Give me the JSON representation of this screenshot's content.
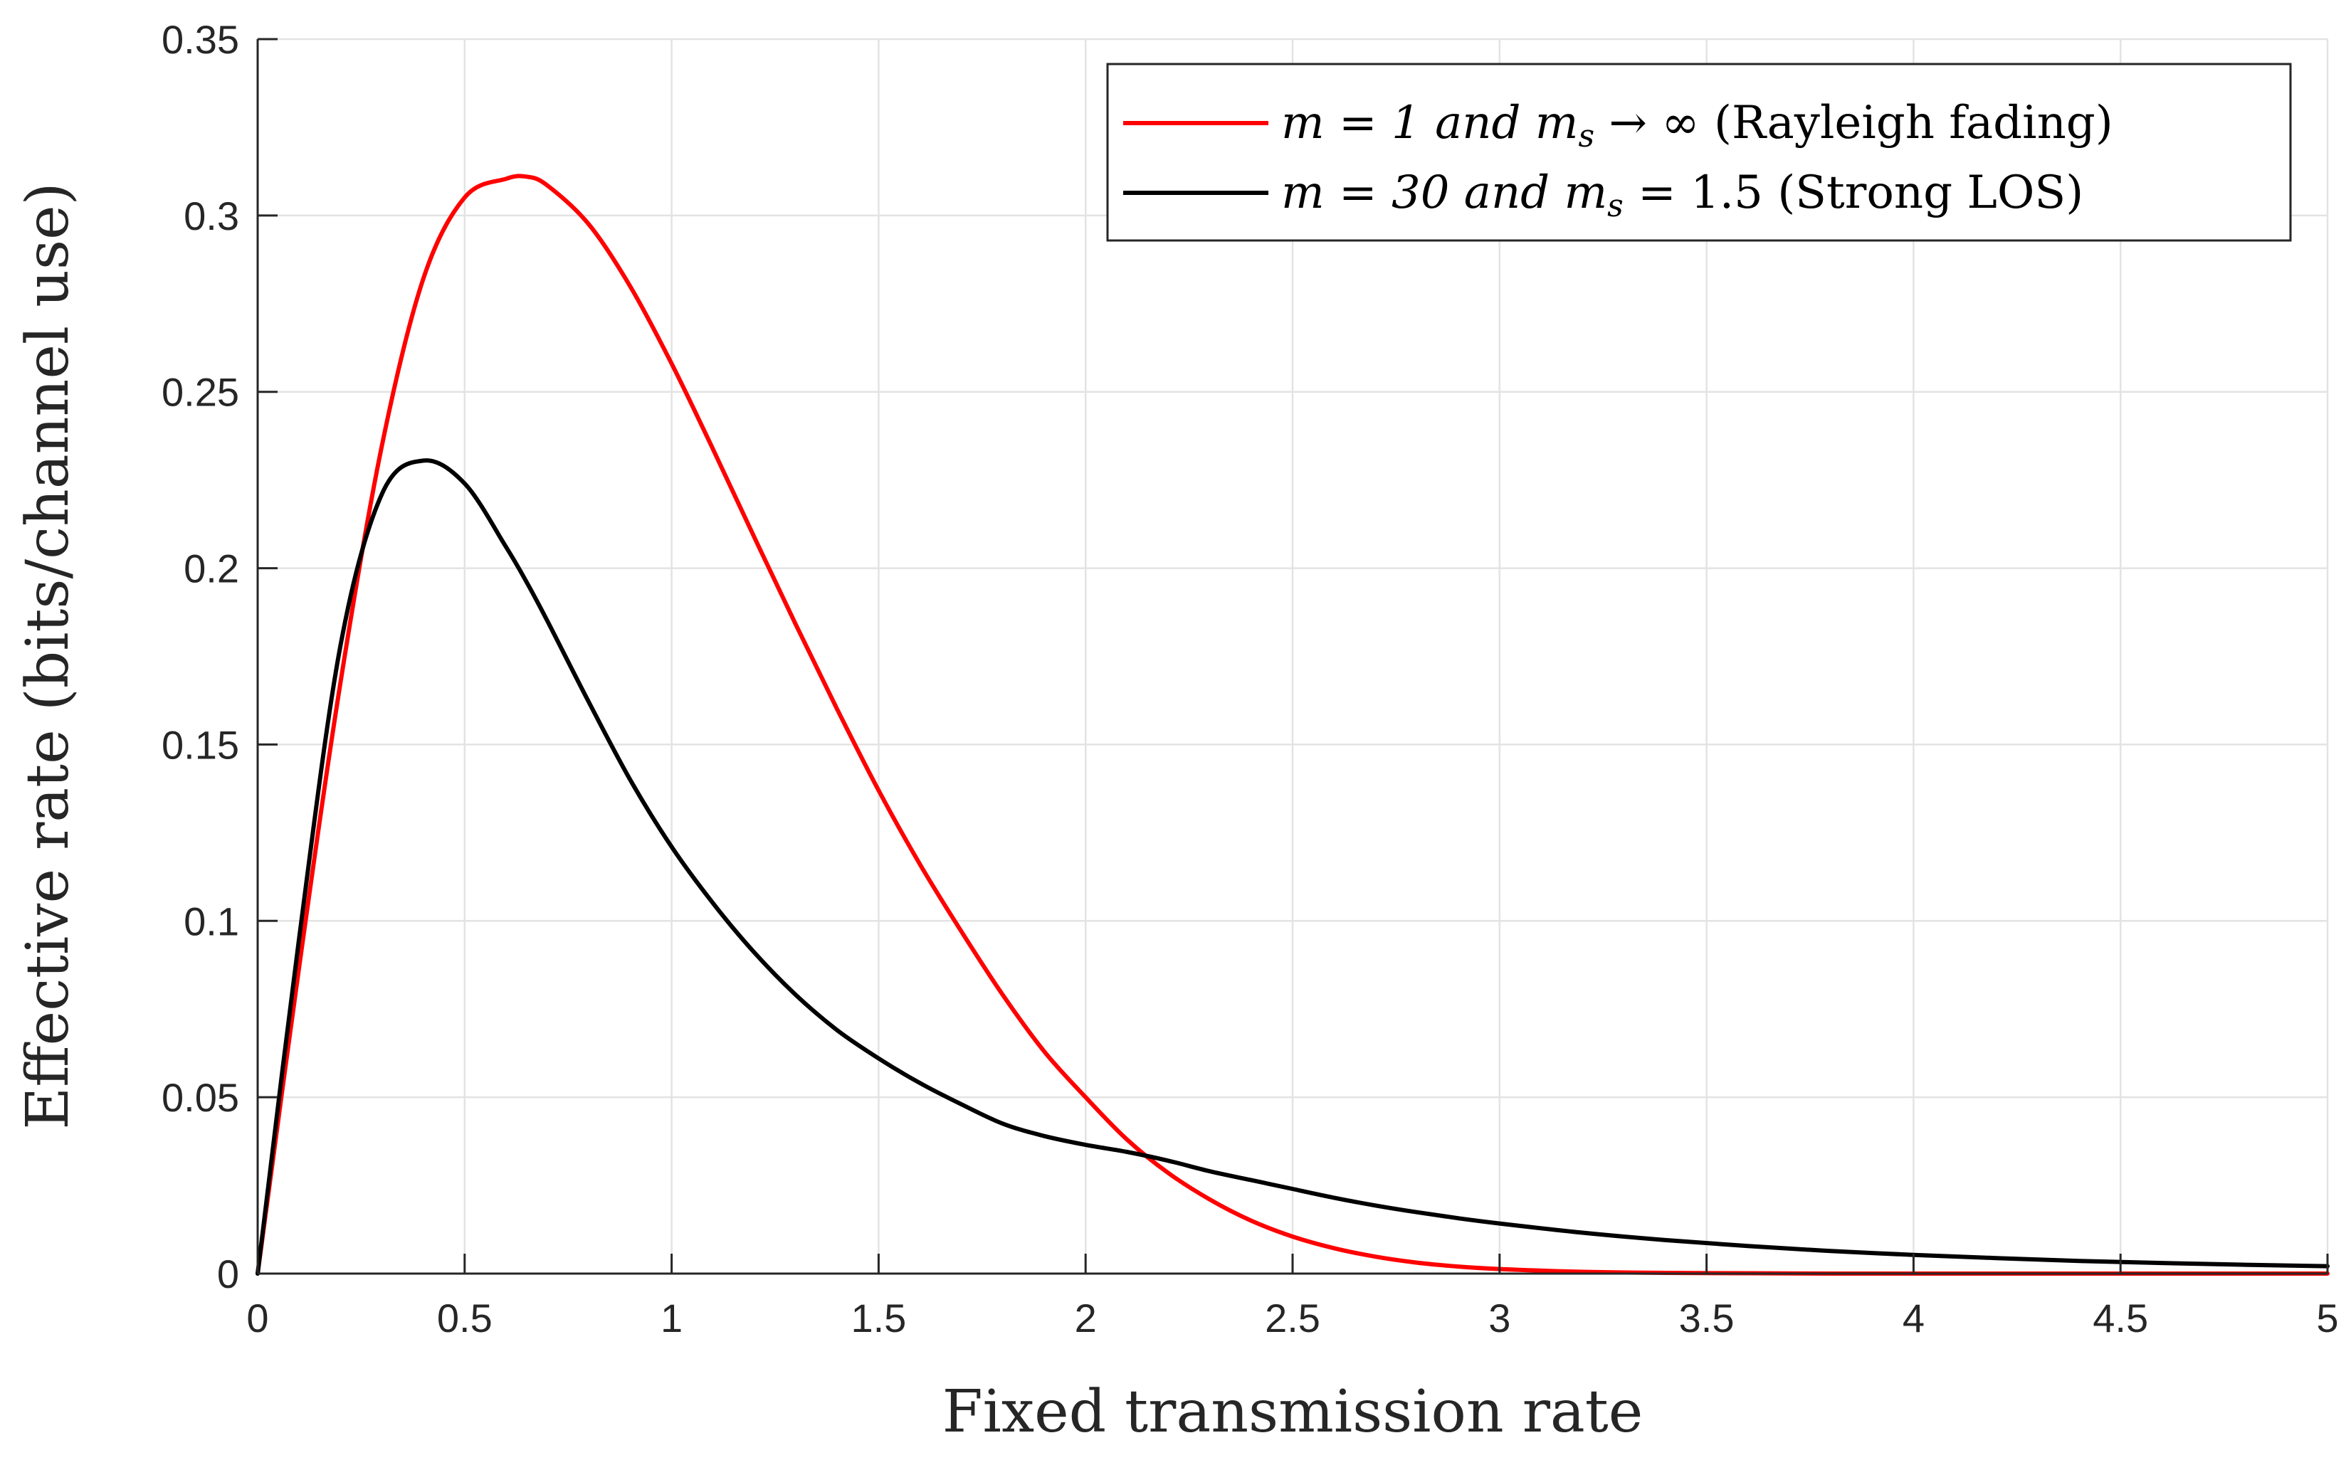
{
  "chart_data": {
    "type": "line",
    "title": "",
    "xlabel": "Fixed transmission rate",
    "ylabel": "Effective rate (bits/channel use)",
    "xlim": [
      0,
      5
    ],
    "ylim": [
      0,
      0.35
    ],
    "xticks": [
      "0",
      "0.5",
      "1",
      "1.5",
      "2",
      "2.5",
      "3",
      "3.5",
      "4",
      "4.5",
      "5"
    ],
    "yticks": [
      "0",
      "0.05",
      "0.1",
      "0.15",
      "0.2",
      "0.25",
      "0.3",
      "0.35"
    ],
    "grid": true,
    "legend_position": "top-right",
    "x": [
      0,
      0.1,
      0.2,
      0.3,
      0.4,
      0.5,
      0.6,
      0.65,
      0.7,
      0.8,
      0.9,
      1.0,
      1.1,
      1.2,
      1.3,
      1.4,
      1.5,
      1.6,
      1.7,
      1.8,
      1.9,
      2.0,
      2.1,
      2.2,
      2.3,
      2.4,
      2.5,
      2.6,
      2.7,
      2.8,
      2.9,
      3.0,
      3.2,
      3.4,
      3.6,
      3.8,
      4.0,
      4.2,
      4.4,
      4.6,
      4.8,
      5.0
    ],
    "series": [
      {
        "name": "m = 1 and m_s → ∞ (Rayleigh fading)",
        "label_main": "m = 1 and m",
        "label_sub": "s",
        "label_rest": " → ∞ (Rayleigh fading)",
        "color": "#ff0000",
        "values": [
          0,
          0.0868,
          0.1675,
          0.2347,
          0.282,
          0.3051,
          0.3104,
          0.311,
          0.3085,
          0.2975,
          0.2799,
          0.258,
          0.2337,
          0.2087,
          0.184,
          0.16,
          0.137,
          0.116,
          0.097,
          0.079,
          0.063,
          0.05,
          0.038,
          0.0285,
          0.021,
          0.015,
          0.0105,
          0.0072,
          0.0048,
          0.0031,
          0.002,
          0.0013,
          0.0005,
          0.0002,
          0.0001,
          0.0,
          0.0,
          0.0,
          0.0,
          0.0,
          0.0,
          0.0
        ]
      },
      {
        "name": "m = 30 and m_s = 1.5 (Strong LOS)",
        "label_main": "m = 30 and m",
        "label_sub": "s",
        "label_rest": " = 1.5 (Strong LOS)",
        "color": "#000000",
        "values": [
          0,
          0.095,
          0.178,
          0.221,
          0.2305,
          0.224,
          0.206,
          0.196,
          0.185,
          0.162,
          0.14,
          0.121,
          0.105,
          0.091,
          0.079,
          0.069,
          0.061,
          0.054,
          0.048,
          0.0425,
          0.039,
          0.0365,
          0.0345,
          0.032,
          0.029,
          0.0265,
          0.024,
          0.0215,
          0.0193,
          0.0174,
          0.0157,
          0.0142,
          0.0116,
          0.0095,
          0.0078,
          0.0064,
          0.0053,
          0.0044,
          0.0036,
          0.003,
          0.0025,
          0.0021
        ]
      }
    ]
  }
}
